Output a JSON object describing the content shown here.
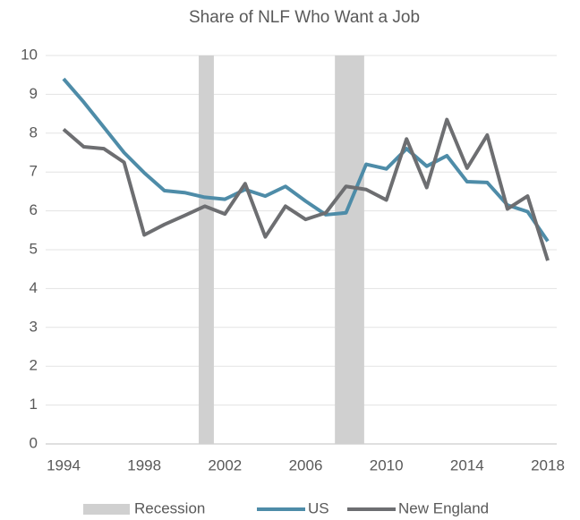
{
  "chart_data": {
    "type": "line",
    "title": "Share of NLF Who Want a Job",
    "x": [
      1994,
      1995,
      1996,
      1997,
      1998,
      1999,
      2000,
      2001,
      2002,
      2003,
      2004,
      2005,
      2006,
      2007,
      2008,
      2009,
      2010,
      2011,
      2012,
      2013,
      2014,
      2015,
      2016,
      2017,
      2018
    ],
    "series": [
      {
        "name": "US",
        "color": "#4e8ca8",
        "values": [
          9.4,
          8.8,
          8.15,
          7.5,
          6.98,
          6.52,
          6.47,
          6.35,
          6.3,
          6.55,
          6.38,
          6.63,
          6.25,
          5.9,
          5.95,
          7.2,
          7.08,
          7.6,
          7.15,
          7.42,
          6.75,
          6.73,
          6.15,
          5.98,
          5.22
        ]
      },
      {
        "name": "New England",
        "color": "#6d6e71",
        "values": [
          8.1,
          7.65,
          7.6,
          7.25,
          5.38,
          5.65,
          5.88,
          6.12,
          5.92,
          6.7,
          5.33,
          6.12,
          5.78,
          5.95,
          6.63,
          6.55,
          6.28,
          7.85,
          6.6,
          8.35,
          7.1,
          7.95,
          6.05,
          6.38,
          4.72
        ]
      }
    ],
    "recession": {
      "name": "Recession",
      "color": "#d0d0d0",
      "spans": [
        [
          2000.7,
          2001.45
        ],
        [
          2007.45,
          2008.9
        ]
      ]
    },
    "xlim": [
      1994,
      2018
    ],
    "xticks": [
      1994,
      1998,
      2002,
      2006,
      2010,
      2014,
      2018
    ],
    "ylim": [
      0,
      10
    ],
    "yticks": [
      0,
      1,
      2,
      3,
      4,
      5,
      6,
      7,
      8,
      9,
      10
    ],
    "grid": true,
    "legend": "bottom"
  }
}
